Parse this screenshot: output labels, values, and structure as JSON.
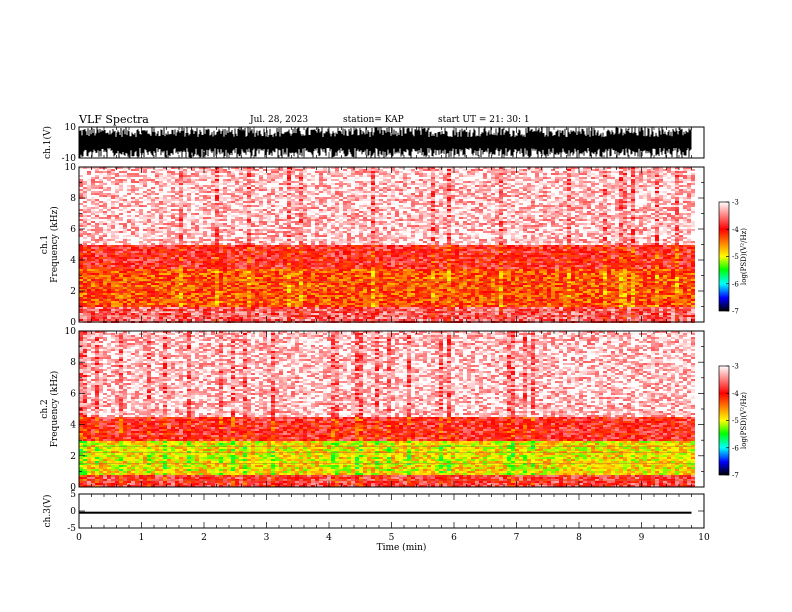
{
  "header": {
    "title": "VLF Spectra",
    "date": "Jul. 28, 2023",
    "station": "station= KAP",
    "start": "start UT =  21: 30: 1"
  },
  "chart_data": [
    {
      "type": "line",
      "panel": "ch1-waveform",
      "ylabel": "ch.1(V)",
      "ylim": [
        -10,
        10
      ],
      "y_ticks": [
        "10",
        "-10"
      ],
      "xlim": [
        0,
        10
      ],
      "description_values": {
        "amplitude_range": [
          -10,
          10
        ]
      }
    },
    {
      "type": "heatmap",
      "panel": "ch1-spectrogram",
      "ylabel": "ch.1\nFrequency (kHz)",
      "ylabel_line1": "ch.1",
      "ylabel_line2": "Frequency (kHz)",
      "ylim": [
        0,
        10
      ],
      "y_ticks": [
        "0",
        "2",
        "4",
        "6",
        "8",
        "10"
      ],
      "xlim": [
        0,
        9.8
      ],
      "colorbar": {
        "label": "log(PSD)(V²/Hz)",
        "range": [
          -7,
          -3
        ],
        "ticks": [
          "-3",
          "-4",
          "-5",
          "-6",
          "-7"
        ]
      },
      "bands_khz": [
        {
          "from": 0,
          "to": 1.0,
          "level": -3.6
        },
        {
          "from": 1.0,
          "to": 3.5,
          "level": -4.3
        },
        {
          "from": 3.5,
          "to": 5.0,
          "level": -3.9
        },
        {
          "from": 5.0,
          "to": 10.0,
          "level": -3.2
        }
      ]
    },
    {
      "type": "heatmap",
      "panel": "ch2-spectrogram",
      "ylabel": "ch.2\nFrequency (kHz)",
      "ylabel_line1": "ch.2",
      "ylabel_line2": "Frequency (kHz)",
      "ylim": [
        0,
        10
      ],
      "y_ticks": [
        "0",
        "2",
        "4",
        "6",
        "8",
        "10"
      ],
      "xlim": [
        0,
        9.8
      ],
      "colorbar": {
        "label": "log(PSD)(V²/Hz)",
        "range": [
          -7,
          -3
        ],
        "ticks": [
          "-3",
          "-4",
          "-5",
          "-6",
          "-7"
        ]
      },
      "bands_khz": [
        {
          "from": 0,
          "to": 0.8,
          "level": -3.8
        },
        {
          "from": 0.8,
          "to": 3.0,
          "level": -4.9
        },
        {
          "from": 3.0,
          "to": 4.5,
          "level": -3.9
        },
        {
          "from": 4.5,
          "to": 10.0,
          "level": -3.2
        }
      ]
    },
    {
      "type": "line",
      "panel": "ch3-waveform",
      "ylabel": "ch.3(V)",
      "ylim": [
        -5,
        5
      ],
      "y_ticks": [
        "5",
        "0",
        "-5"
      ],
      "xlim": [
        0,
        10
      ],
      "xlabel": "Time (min)",
      "x_ticks": [
        "0",
        "1",
        "2",
        "3",
        "4",
        "5",
        "6",
        "7",
        "8",
        "9",
        "10"
      ],
      "description_values": {
        "center": -0.5,
        "half_width": 0.3
      }
    }
  ],
  "colors": {
    "axis": "#000000",
    "colormap": [
      "#ffffff",
      "#ff0000",
      "#ffff00",
      "#00ff00",
      "#00ffff",
      "#0000ff",
      "#000000"
    ]
  }
}
